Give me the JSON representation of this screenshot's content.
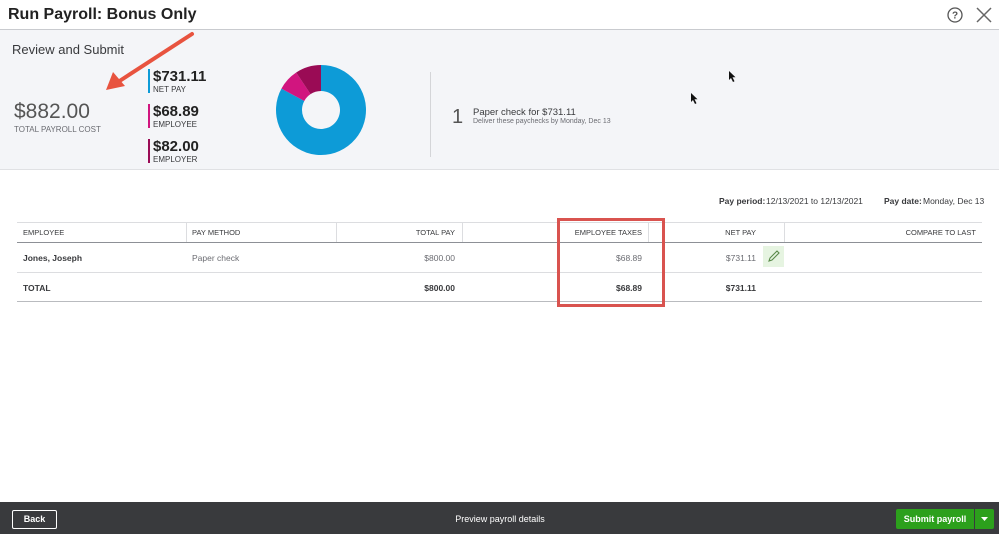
{
  "header": {
    "title": "Run Payroll: Bonus Only"
  },
  "summary": {
    "heading": "Review and Submit",
    "total": "$882.00",
    "total_label": "TOTAL PAYROLL COST",
    "breakdown": [
      {
        "amount": "$731.11",
        "label": "NET PAY",
        "value": 731.11,
        "color": "#0d9bd7"
      },
      {
        "amount": "$68.89",
        "label": "EMPLOYEE",
        "value": 68.89,
        "color": "#d1157f"
      },
      {
        "amount": "$82.00",
        "label": "EMPLOYER",
        "value": 82.0,
        "color": "#9a0b55"
      }
    ]
  },
  "checks": {
    "count": 1,
    "text": "Paper check for $731.11",
    "note": "Deliver these paychecks by Monday, Dec 13"
  },
  "pay_info": {
    "period_label": "Pay period:",
    "period": "12/13/2021 to 12/13/2021",
    "date_label": "Pay date:",
    "date": "Monday, Dec 13"
  },
  "table": {
    "columns": [
      "EMPLOYEE",
      "PAY METHOD",
      "TOTAL PAY",
      "EMPLOYEE TAXES",
      "NET PAY",
      "COMPARE TO LAST"
    ],
    "rows": [
      {
        "employee": "Jones, Joseph",
        "pay_method": "Paper check",
        "total_pay": "$800.00",
        "employee_taxes": "$68.89",
        "net_pay": "$731.11"
      }
    ],
    "total": {
      "label": "TOTAL",
      "total_pay": "$800.00",
      "employee_taxes": "$68.89",
      "net_pay": "$731.11"
    }
  },
  "footer": {
    "back": "Back",
    "preview": "Preview payroll details",
    "submit": "Submit payroll"
  }
}
